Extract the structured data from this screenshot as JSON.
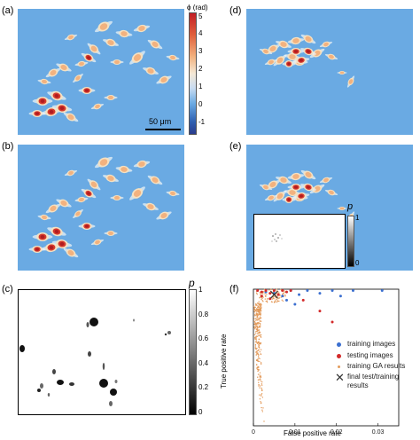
{
  "panels": {
    "a": {
      "label": "(a)"
    },
    "b": {
      "label": "(b)"
    },
    "c": {
      "label": "(c)"
    },
    "d": {
      "label": "(d)"
    },
    "e": {
      "label": "(e)"
    },
    "f": {
      "label": "(f)"
    }
  },
  "scalebar": {
    "label": "50 μm"
  },
  "phase_colorbar": {
    "title": "ϕ (rad)",
    "ticks": [
      "5",
      "4",
      "3",
      "2",
      "1",
      "0",
      "-1"
    ],
    "colors": [
      "#c21e24",
      "#e0603c",
      "#f2b27f",
      "#f4e9d6",
      "#c9dcf1",
      "#6aaae3",
      "#2f5fb0",
      "#2a3c8c"
    ]
  },
  "prob_colorbar_c": {
    "title": "p",
    "ticks": [
      "1",
      "0.8",
      "0.6",
      "0.4",
      "0.2",
      "0"
    ]
  },
  "prob_colorbar_e": {
    "title": "p",
    "ticks": [
      "1",
      "0"
    ]
  },
  "chart_data": {
    "type": "scatter",
    "xlabel": "False positive rate",
    "ylabel": "True positive rate",
    "xlim": [
      0,
      0.035
    ],
    "ylim": [
      0,
      1
    ],
    "xticks": [
      "0",
      "0.01",
      "0.02",
      "0.03"
    ],
    "legend_position": "right",
    "series": [
      {
        "name": "training images",
        "color": "#3b6fd0",
        "points": [
          [
            0.003,
            0.98
          ],
          [
            0.005,
            0.97
          ],
          [
            0.007,
            0.95
          ],
          [
            0.009,
            0.99
          ],
          [
            0.011,
            0.96
          ],
          [
            0.013,
            0.99
          ],
          [
            0.016,
            0.97
          ],
          [
            0.019,
            0.99
          ],
          [
            0.021,
            0.95
          ],
          [
            0.024,
            0.99
          ],
          [
            0.031,
            0.99
          ],
          [
            0.008,
            0.92
          ],
          [
            0.01,
            0.89
          ]
        ]
      },
      {
        "name": "testing images",
        "color": "#d32a2a",
        "points": [
          [
            0.001,
            0.99
          ],
          [
            0.002,
            0.98
          ],
          [
            0.003,
            0.99
          ],
          [
            0.004,
            0.97
          ],
          [
            0.005,
            0.99
          ],
          [
            0.006,
            0.96
          ],
          [
            0.007,
            0.99
          ],
          [
            0.008,
            0.98
          ],
          [
            0.009,
            0.99
          ],
          [
            0.012,
            0.92
          ],
          [
            0.016,
            0.84
          ],
          [
            0.019,
            0.76
          ],
          [
            0.002,
            0.95
          ],
          [
            0.004,
            0.93
          ]
        ]
      },
      {
        "name": "training GA results",
        "color": "#e39a5a",
        "points": []
      },
      {
        "name": "final test/training results",
        "color": "#333333",
        "points": [
          [
            0.005,
            0.96
          ]
        ]
      }
    ]
  }
}
